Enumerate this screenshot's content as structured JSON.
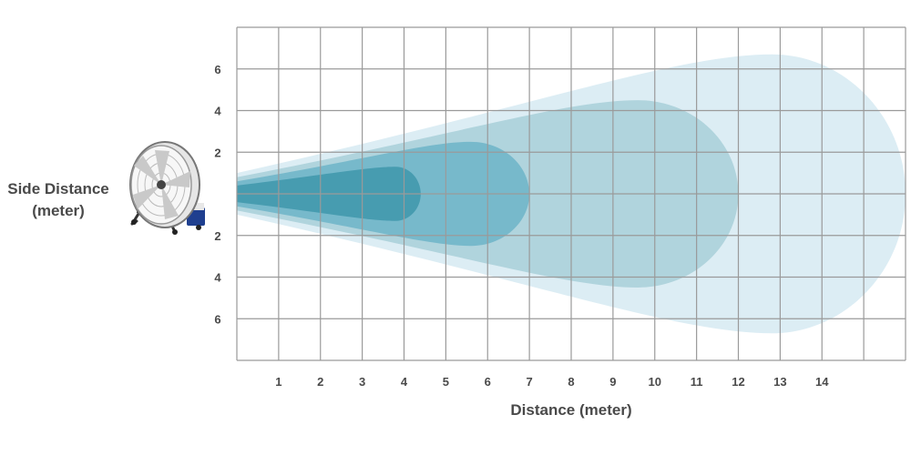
{
  "chart_data": {
    "type": "area",
    "xlabel": "Distance (meter)",
    "ylabel_lines": [
      "Side Distance",
      "(meter)"
    ],
    "x_ticks": [
      1,
      2,
      3,
      4,
      5,
      6,
      7,
      8,
      9,
      10,
      11,
      12,
      13,
      14
    ],
    "y_ticks_top": [
      6,
      4,
      2
    ],
    "y_ticks_bottom": [
      2,
      4,
      6
    ],
    "xlim": [
      0,
      16
    ],
    "ylim": [
      -8,
      8
    ],
    "grid": true,
    "legend": "none",
    "zones": [
      {
        "reach": 16,
        "max_half_width": 6.7,
        "max_at": 12.8,
        "half_width_at_origin": 1.0,
        "color": "#dcedf4"
      },
      {
        "reach": 12,
        "max_half_width": 4.5,
        "max_at": 9.6,
        "half_width_at_origin": 0.8,
        "color": "#a8cfd8"
      },
      {
        "reach": 7,
        "max_half_width": 2.5,
        "max_at": 5.6,
        "half_width_at_origin": 0.6,
        "color": "#6db4c8"
      },
      {
        "reach": 4.4,
        "max_half_width": 1.3,
        "max_at": 3.8,
        "half_width_at_origin": 0.4,
        "color": "#3e97ac"
      }
    ],
    "colors": {
      "grid": "#9a9a9a",
      "text": "#4a4a4a"
    }
  },
  "illustration": {
    "name": "industrial-drum-fan"
  }
}
